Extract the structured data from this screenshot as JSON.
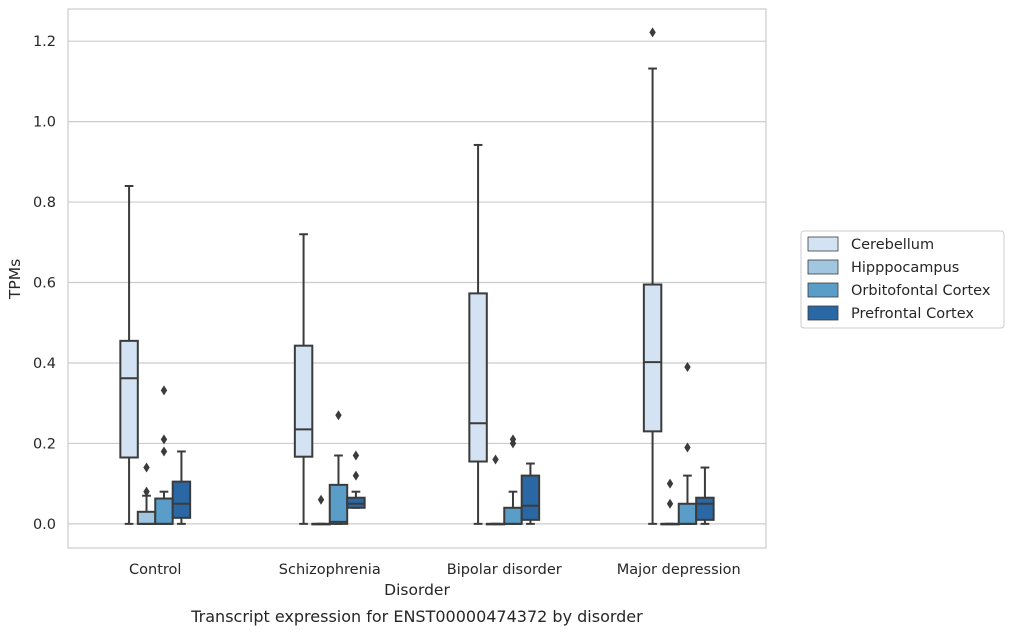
{
  "chart_data": {
    "type": "box",
    "xlabel": "Disorder",
    "ylabel": "TPMs",
    "caption": "Transcript expression for ENST00000474372 by disorder",
    "categories": [
      "Control",
      "Schizophrenia",
      "Bipolar disorder",
      "Major depression"
    ],
    "ylim": [
      -0.06,
      1.28
    ],
    "yticks": [
      0.0,
      0.2,
      0.4,
      0.6,
      0.8,
      1.0,
      1.2
    ],
    "ytick_labels": [
      "0.0",
      "0.2",
      "0.4",
      "0.6",
      "0.8",
      "1.0",
      "1.2"
    ],
    "grid": "horizontal",
    "legend_position": "right",
    "series": [
      {
        "name": "Cerebellum",
        "color": "#d3e3f3",
        "boxes": [
          {
            "whislo": 0.0,
            "q1": 0.165,
            "med": 0.362,
            "q3": 0.455,
            "whishi": 0.84,
            "fliers": []
          },
          {
            "whislo": 0.0,
            "q1": 0.167,
            "med": 0.235,
            "q3": 0.443,
            "whishi": 0.72,
            "fliers": []
          },
          {
            "whislo": 0.0,
            "q1": 0.155,
            "med": 0.25,
            "q3": 0.573,
            "whishi": 0.942,
            "fliers": []
          },
          {
            "whislo": 0.0,
            "q1": 0.23,
            "med": 0.402,
            "q3": 0.595,
            "whishi": 1.132,
            "fliers": [
              1.222
            ]
          }
        ]
      },
      {
        "name": "Hipppocampus",
        "color": "#a0c6e0",
        "boxes": [
          {
            "whislo": 0.0,
            "q1": 0.0,
            "med": 0.0,
            "q3": 0.03,
            "whishi": 0.07,
            "fliers": [
              0.08,
              0.14
            ]
          },
          {
            "whislo": 0.0,
            "q1": 0.0,
            "med": 0.0,
            "q3": 0.0,
            "whishi": 0.0,
            "fliers": [
              0.06
            ]
          },
          {
            "whislo": 0.0,
            "q1": 0.0,
            "med": 0.0,
            "q3": 0.0,
            "whishi": 0.0,
            "fliers": [
              0.16
            ]
          },
          {
            "whislo": 0.0,
            "q1": 0.0,
            "med": 0.0,
            "q3": 0.0,
            "whishi": 0.0,
            "fliers": [
              0.05,
              0.1
            ]
          }
        ]
      },
      {
        "name": "Orbitofontal Cortex",
        "color": "#5a9dc9",
        "boxes": [
          {
            "whislo": 0.0,
            "q1": 0.0,
            "med": 0.0,
            "q3": 0.063,
            "whishi": 0.08,
            "fliers": [
              0.18,
              0.21,
              0.332
            ]
          },
          {
            "whislo": 0.0,
            "q1": 0.0,
            "med": 0.005,
            "q3": 0.097,
            "whishi": 0.17,
            "fliers": [
              0.27
            ]
          },
          {
            "whislo": 0.0,
            "q1": 0.0,
            "med": 0.0,
            "q3": 0.04,
            "whishi": 0.08,
            "fliers": [
              0.2,
              0.21
            ]
          },
          {
            "whislo": 0.0,
            "q1": 0.0,
            "med": 0.0,
            "q3": 0.05,
            "whishi": 0.12,
            "fliers": [
              0.19,
              0.39
            ]
          }
        ]
      },
      {
        "name": "Prefrontal Cortex",
        "color": "#2a67a5",
        "boxes": [
          {
            "whislo": 0.0,
            "q1": 0.015,
            "med": 0.05,
            "q3": 0.105,
            "whishi": 0.18,
            "fliers": []
          },
          {
            "whislo": 0.04,
            "q1": 0.04,
            "med": 0.05,
            "q3": 0.065,
            "whishi": 0.08,
            "fliers": [
              0.12,
              0.17
            ]
          },
          {
            "whislo": 0.0,
            "q1": 0.01,
            "med": 0.045,
            "q3": 0.12,
            "whishi": 0.15,
            "fliers": []
          },
          {
            "whislo": 0.0,
            "q1": 0.01,
            "med": 0.05,
            "q3": 0.065,
            "whishi": 0.14,
            "fliers": []
          }
        ]
      }
    ]
  }
}
